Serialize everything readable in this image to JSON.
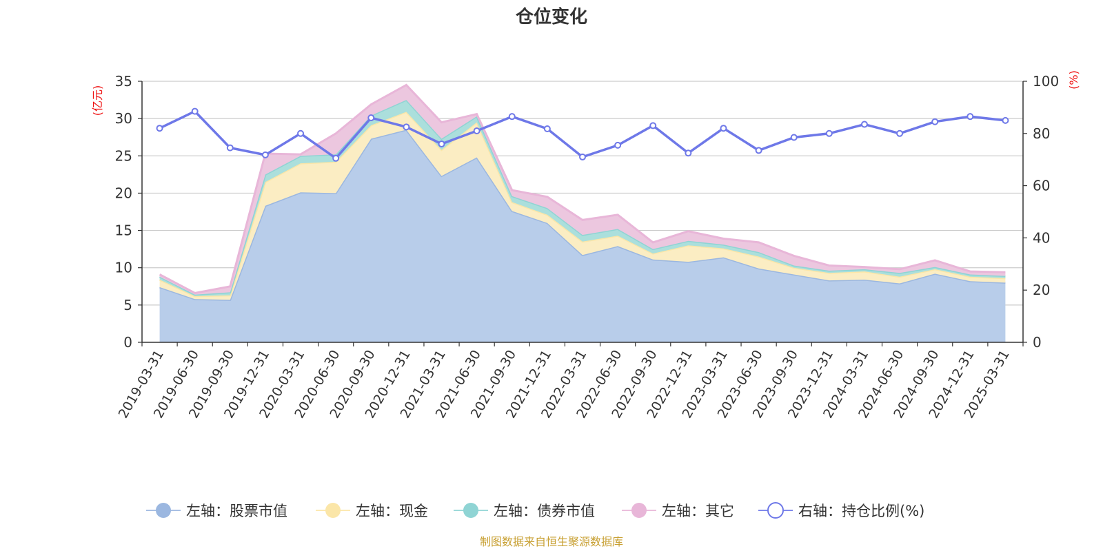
{
  "chart_data": {
    "type": "area",
    "title": "仓位变化",
    "left_axis_unit": "(亿元)",
    "right_axis_unit": "(%)",
    "x": [
      "2019-03-31",
      "2019-06-30",
      "2019-09-30",
      "2019-12-31",
      "2020-03-31",
      "2020-06-30",
      "2020-09-30",
      "2020-12-31",
      "2021-03-31",
      "2021-06-30",
      "2021-09-30",
      "2021-12-31",
      "2022-03-31",
      "2022-06-30",
      "2022-09-30",
      "2022-12-31",
      "2023-03-31",
      "2023-06-30",
      "2023-09-30",
      "2023-12-31",
      "2024-03-31",
      "2024-06-30",
      "2024-09-30",
      "2024-12-31",
      "2025-03-31"
    ],
    "x_tick_labels": [
      "2019-03-31",
      "2019-06-30",
      "2019-09-30",
      "2019-12-31",
      "2020-03-31",
      "2020-06-30",
      "2020-09-30",
      "2020-12-31",
      "2021-03-31",
      "2021-06-30",
      "2021-09-30",
      "2021-12-31",
      "2022-03-31",
      "2022-06-30",
      "2022-09-30",
      "2022-12-31",
      "2023-03-31",
      "2023-06-30",
      "2023-09-30",
      "2023-12-31",
      "2024-03-31",
      "2024-06-30",
      "2024-09-30",
      "2024-12-31",
      "2025-03-31"
    ],
    "left_ylim": [
      0,
      35
    ],
    "left_ticks": [
      0,
      5,
      10,
      15,
      20,
      25,
      30,
      35
    ],
    "right_ylim": [
      0,
      100
    ],
    "right_ticks": [
      0,
      20,
      40,
      60,
      80,
      100
    ],
    "grid": true,
    "stacked": true,
    "legend_position": "bottom",
    "series": [
      {
        "name": "左轴：股票市值",
        "axis": "left",
        "color": "#9bb7e0",
        "fill": "#b8cdea",
        "values": [
          7.4,
          5.8,
          5.7,
          18.3,
          20.1,
          20.0,
          27.3,
          28.5,
          22.3,
          24.8,
          17.6,
          16.0,
          11.7,
          12.9,
          11.1,
          10.8,
          11.4,
          9.9,
          9.1,
          8.3,
          8.4,
          7.9,
          9.2,
          8.2,
          8.0
        ]
      },
      {
        "name": "左轴：现金",
        "axis": "left",
        "color": "#fbe6a8",
        "fill": "#fbedc3",
        "values": [
          1.0,
          0.4,
          0.6,
          3.2,
          3.9,
          4.2,
          1.8,
          2.4,
          3.5,
          4.7,
          1.2,
          1.1,
          1.8,
          1.4,
          0.8,
          2.2,
          1.2,
          1.6,
          0.9,
          1.0,
          1.1,
          0.9,
          0.6,
          0.6,
          0.6
        ]
      },
      {
        "name": "左轴：债券市值",
        "axis": "left",
        "color": "#8fd4d4",
        "fill": "#abdfdc",
        "values": [
          0.4,
          0.2,
          0.4,
          1.0,
          1.0,
          1.0,
          1.3,
          1.6,
          1.5,
          0.8,
          0.8,
          0.9,
          0.9,
          0.9,
          0.6,
          0.6,
          0.5,
          0.6,
          0.3,
          0.3,
          0.3,
          0.5,
          0.3,
          0.3,
          0.3
        ]
      },
      {
        "name": "左轴：其它",
        "axis": "left",
        "color": "#e8b6d8",
        "fill": "#ecc7df",
        "values": [
          0.3,
          0.2,
          0.8,
          2.8,
          0.2,
          2.8,
          1.5,
          2.0,
          2.2,
          0.3,
          0.8,
          1.5,
          2.0,
          1.9,
          0.9,
          1.3,
          0.8,
          1.3,
          1.3,
          0.7,
          0.3,
          0.5,
          0.9,
          0.4,
          0.5
        ]
      },
      {
        "name": "右轴：持仓比例(%)",
        "axis": "right",
        "type": "line",
        "color": "#6e78e8",
        "values": [
          82.0,
          88.5,
          74.5,
          71.8,
          80.0,
          70.5,
          86.0,
          82.5,
          76.0,
          81.0,
          86.5,
          81.8,
          71.0,
          75.5,
          83.0,
          72.5,
          82.0,
          73.5,
          78.5,
          80.0,
          83.5,
          80.0,
          84.5,
          86.5,
          85.0
        ]
      }
    ],
    "source_note": "制图数据来自恒生聚源数据库"
  }
}
